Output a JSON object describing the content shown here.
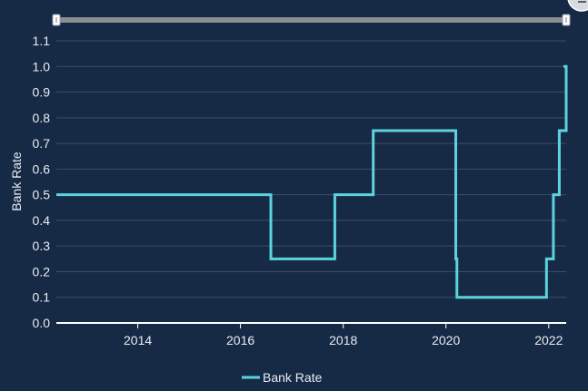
{
  "chart_data": {
    "type": "line",
    "line_shape": "step",
    "ylabel": "Bank Rate",
    "xlabel": "",
    "ylim": [
      0,
      1.1
    ],
    "yticks": [
      0.0,
      0.1,
      0.2,
      0.3,
      0.4,
      0.5,
      0.6,
      0.7,
      0.8,
      0.9,
      1.0,
      1.1
    ],
    "ytick_labels": [
      "0.0",
      "0.1",
      "0.2",
      "0.3",
      "0.4",
      "0.5",
      "0.6",
      "0.7",
      "0.8",
      "0.9",
      "1.0",
      "1.1"
    ],
    "xlim": [
      "2012-06-01",
      "2022-05-05"
    ],
    "xticks": [
      "2014-01-01",
      "2016-01-01",
      "2018-01-01",
      "2020-01-01",
      "2022-01-01"
    ],
    "xtick_labels": [
      "2014",
      "2016",
      "2018",
      "2020",
      "2022"
    ],
    "grid": true,
    "legend": "bottom-center",
    "series": [
      {
        "name": "Bank Rate",
        "color": "#5bd3de",
        "points": [
          [
            "2012-06-01",
            0.5
          ],
          [
            "2016-08-04",
            0.25
          ],
          [
            "2017-11-02",
            0.5
          ],
          [
            "2018-08-02",
            0.75
          ],
          [
            "2020-03-11",
            0.25
          ],
          [
            "2020-03-19",
            0.1
          ],
          [
            "2021-12-16",
            0.25
          ],
          [
            "2022-02-03",
            0.5
          ],
          [
            "2022-03-17",
            0.75
          ],
          [
            "2022-05-05",
            1.0
          ]
        ]
      }
    ]
  },
  "range_selector": {
    "start": 0,
    "end": 1
  },
  "colors": {
    "background": "#172a45",
    "grid": "#3b4e68",
    "axis": "#ffffff",
    "text": "#e8ecf2",
    "slider_track": "#8a8d94",
    "line": "#5bd3de"
  }
}
